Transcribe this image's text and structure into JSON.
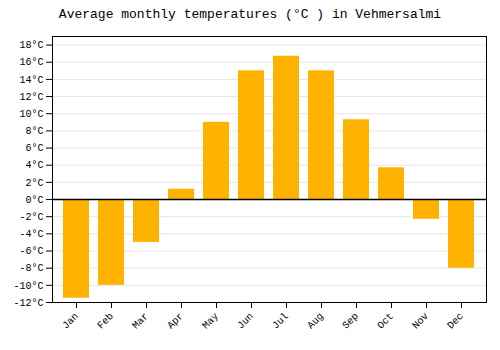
{
  "chart_data": {
    "type": "bar",
    "title": "Average monthly temperatures (°C ) in Vehmersalmi",
    "categories": [
      "Jan",
      "Feb",
      "Mar",
      "Apr",
      "May",
      "Jun",
      "Jul",
      "Aug",
      "Sep",
      "Oct",
      "Nov",
      "Dec"
    ],
    "values": [
      -11.5,
      -10.0,
      -5.0,
      1.2,
      9.0,
      15.0,
      16.7,
      15.0,
      9.3,
      3.7,
      -2.3,
      -8.0
    ],
    "color": "#FFB300",
    "ylim": [
      -12,
      19
    ],
    "yticks": [
      {
        "value": -12,
        "label": "-12°C"
      },
      {
        "value": -10,
        "label": "-10°C"
      },
      {
        "value": -8,
        "label": "-8°C"
      },
      {
        "value": -6,
        "label": "-6°C"
      },
      {
        "value": -4,
        "label": "-4°C"
      },
      {
        "value": -2,
        "label": "-2°C"
      },
      {
        "value": 0,
        "label": "0°C"
      },
      {
        "value": 2,
        "label": "2°C"
      },
      {
        "value": 4,
        "label": "4°C"
      },
      {
        "value": 6,
        "label": "6°C"
      },
      {
        "value": 8,
        "label": "8°C"
      },
      {
        "value": 10,
        "label": "10°C"
      },
      {
        "value": 12,
        "label": "12°C"
      },
      {
        "value": 14,
        "label": "14°C"
      },
      {
        "value": 16,
        "label": "16°C"
      },
      {
        "value": 18,
        "label": "18°C"
      }
    ],
    "grid": true
  }
}
